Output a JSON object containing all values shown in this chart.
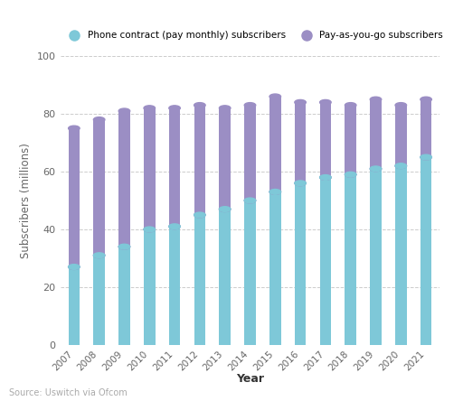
{
  "years": [
    "2007",
    "2008",
    "2009",
    "2010",
    "2011",
    "2012",
    "2013",
    "2014",
    "2015",
    "2016",
    "2017",
    "2018",
    "2019",
    "2020",
    "2021"
  ],
  "phone_contract": [
    27,
    31,
    34,
    40,
    41,
    45,
    47,
    50,
    53,
    56,
    58,
    59,
    61,
    62,
    65
  ],
  "total": [
    75,
    78,
    81,
    82,
    82,
    83,
    82,
    83,
    86,
    84,
    84,
    83,
    85,
    83,
    85
  ],
  "color_contract": "#7EC8D8",
  "color_payg": "#9B8EC4",
  "ylabel": "Subscribers (millions)",
  "xlabel": "Year",
  "source": "Source: Uswitch via Ofcom",
  "legend_contract": "Phone contract (pay monthly) subscribers",
  "legend_payg": "Pay-as-you-go subscribers",
  "ylim": [
    0,
    100
  ],
  "yticks": [
    0,
    20,
    40,
    60,
    80,
    100
  ],
  "grid_color": "#cccccc",
  "bg_color": "#ffffff",
  "bar_width": 0.45
}
